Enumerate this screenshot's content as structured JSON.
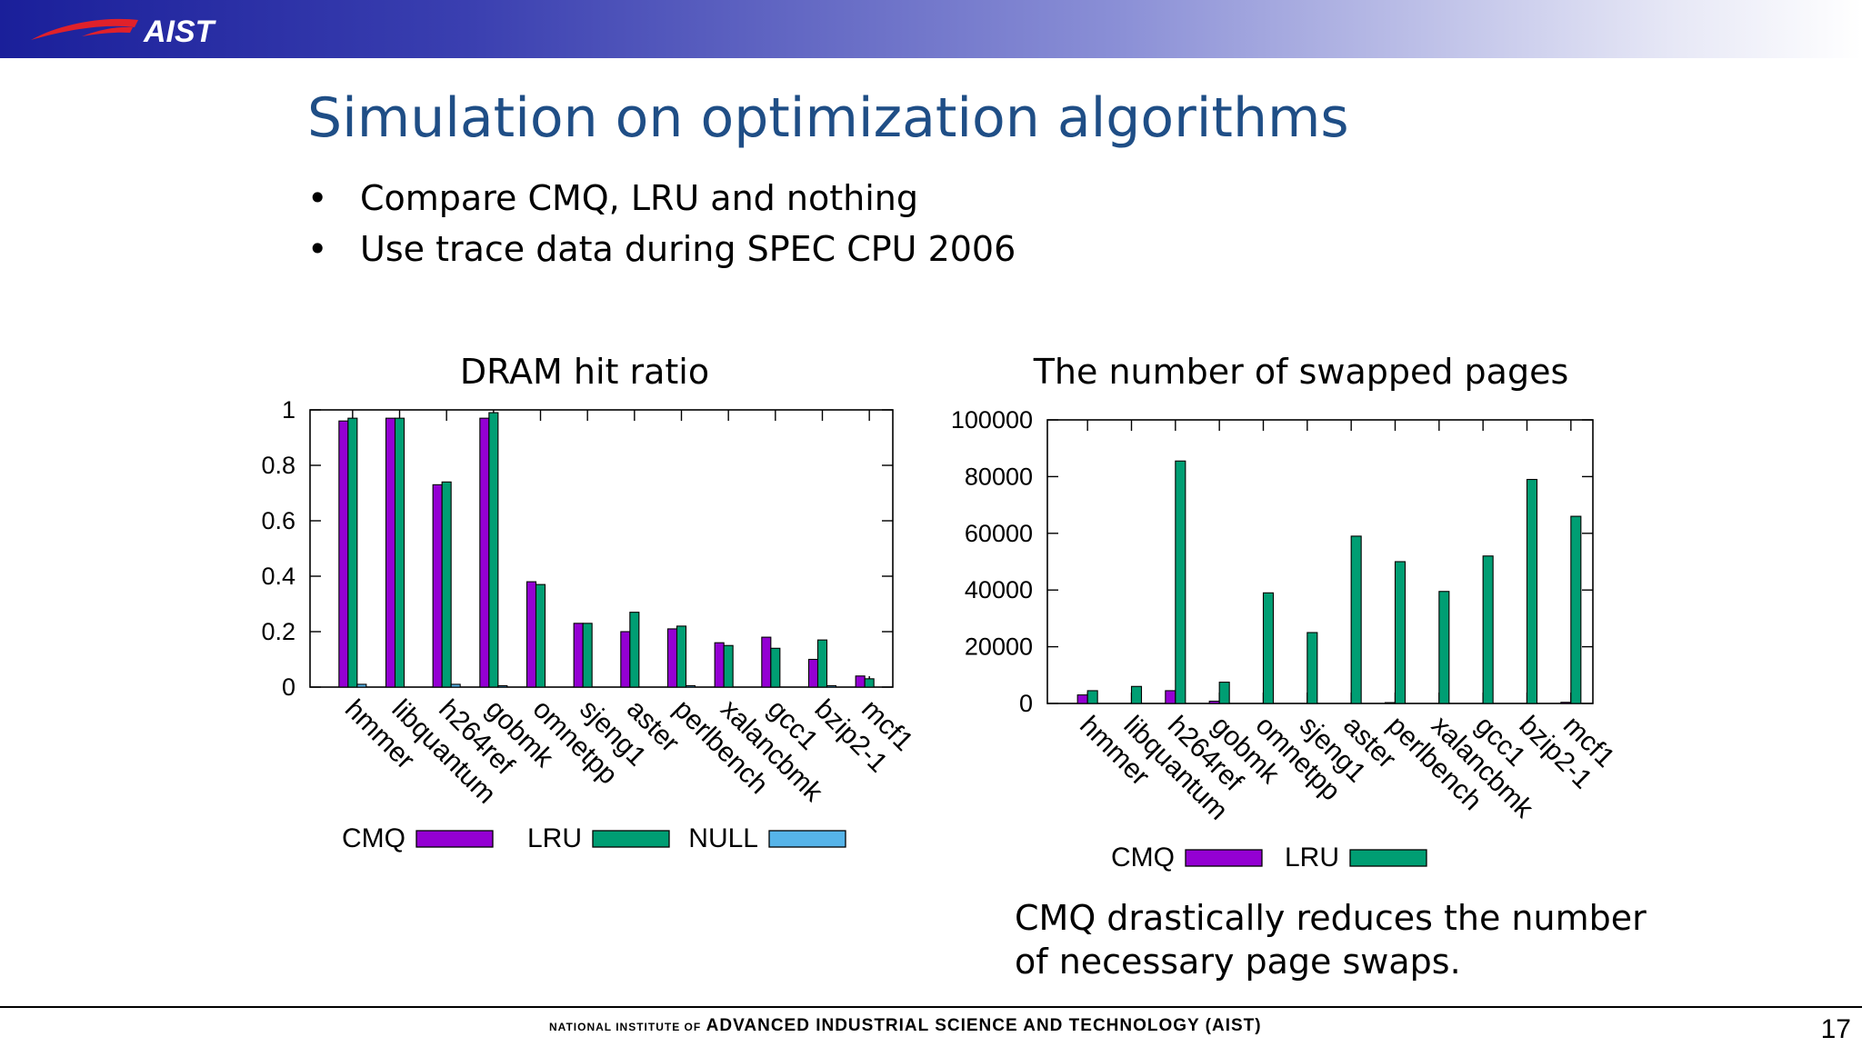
{
  "header": {
    "logo_text": "AIST",
    "title": "Simulation on optimization algorithms"
  },
  "bullets": [
    "Compare CMQ, LRU and nothing",
    "Use trace data during SPEC CPU 2006"
  ],
  "note": "CMQ drastically reduces the number of necessary page swaps.",
  "footer": {
    "prefix": "NATIONAL INSTITUTE OF",
    "org": "ADVANCED INDUSTRIAL SCIENCE AND TECHNOLOGY (AIST)",
    "page": "17"
  },
  "colors": {
    "CMQ": "#9400d3",
    "LRU": "#009e73",
    "NULL": "#56b4e9",
    "title": "#1f4e86"
  },
  "chart_data": [
    {
      "type": "bar",
      "title": "DRAM hit ratio",
      "xlabel": "",
      "ylabel": "",
      "ylim": [
        0,
        1
      ],
      "yticks": [
        "0",
        "0.2",
        "0.4",
        "0.6",
        "0.8",
        "1"
      ],
      "categories": [
        "hmmer",
        "libquantum",
        "h264ref",
        "gobmk",
        "omnetpp",
        "sjeng1",
        "aster",
        "perlbench",
        "xalancbmk",
        "gcc1",
        "bzip2-1",
        "mcf1"
      ],
      "series": [
        {
          "name": "CMQ",
          "values": [
            0.96,
            0.97,
            0.73,
            0.97,
            0.38,
            0.23,
            0.2,
            0.21,
            0.16,
            0.18,
            0.1,
            0.04
          ]
        },
        {
          "name": "LRU",
          "values": [
            0.97,
            0.97,
            0.74,
            0.99,
            0.37,
            0.23,
            0.27,
            0.22,
            0.15,
            0.14,
            0.17,
            0.03
          ]
        },
        {
          "name": "NULL",
          "values": [
            0.01,
            0.0,
            0.01,
            0.005,
            0.0,
            0.0,
            0.0,
            0.005,
            0.0,
            0.0,
            0.005,
            0.0
          ]
        }
      ],
      "legend_position": "bottom",
      "grid": false
    },
    {
      "type": "bar",
      "title": "The number of swapped pages",
      "xlabel": "",
      "ylabel": "",
      "ylim": [
        0,
        100000
      ],
      "yticks": [
        "0",
        "20000",
        "40000",
        "60000",
        "80000",
        "100000"
      ],
      "categories": [
        "hmmer",
        "libquantum",
        "h264ref",
        "gobmk",
        "omnetpp",
        "sjeng1",
        "aster",
        "perlbench",
        "xalancbmk",
        "gcc1",
        "bzip2-1",
        "mcf1"
      ],
      "series": [
        {
          "name": "CMQ",
          "values": [
            3000,
            0,
            4500,
            800,
            0,
            0,
            0,
            300,
            0,
            0,
            0,
            400
          ]
        },
        {
          "name": "LRU",
          "values": [
            4500,
            6000,
            85500,
            7500,
            39000,
            25000,
            59000,
            50000,
            39500,
            52000,
            79000,
            66000
          ]
        }
      ],
      "legend_position": "bottom",
      "grid": false
    }
  ]
}
